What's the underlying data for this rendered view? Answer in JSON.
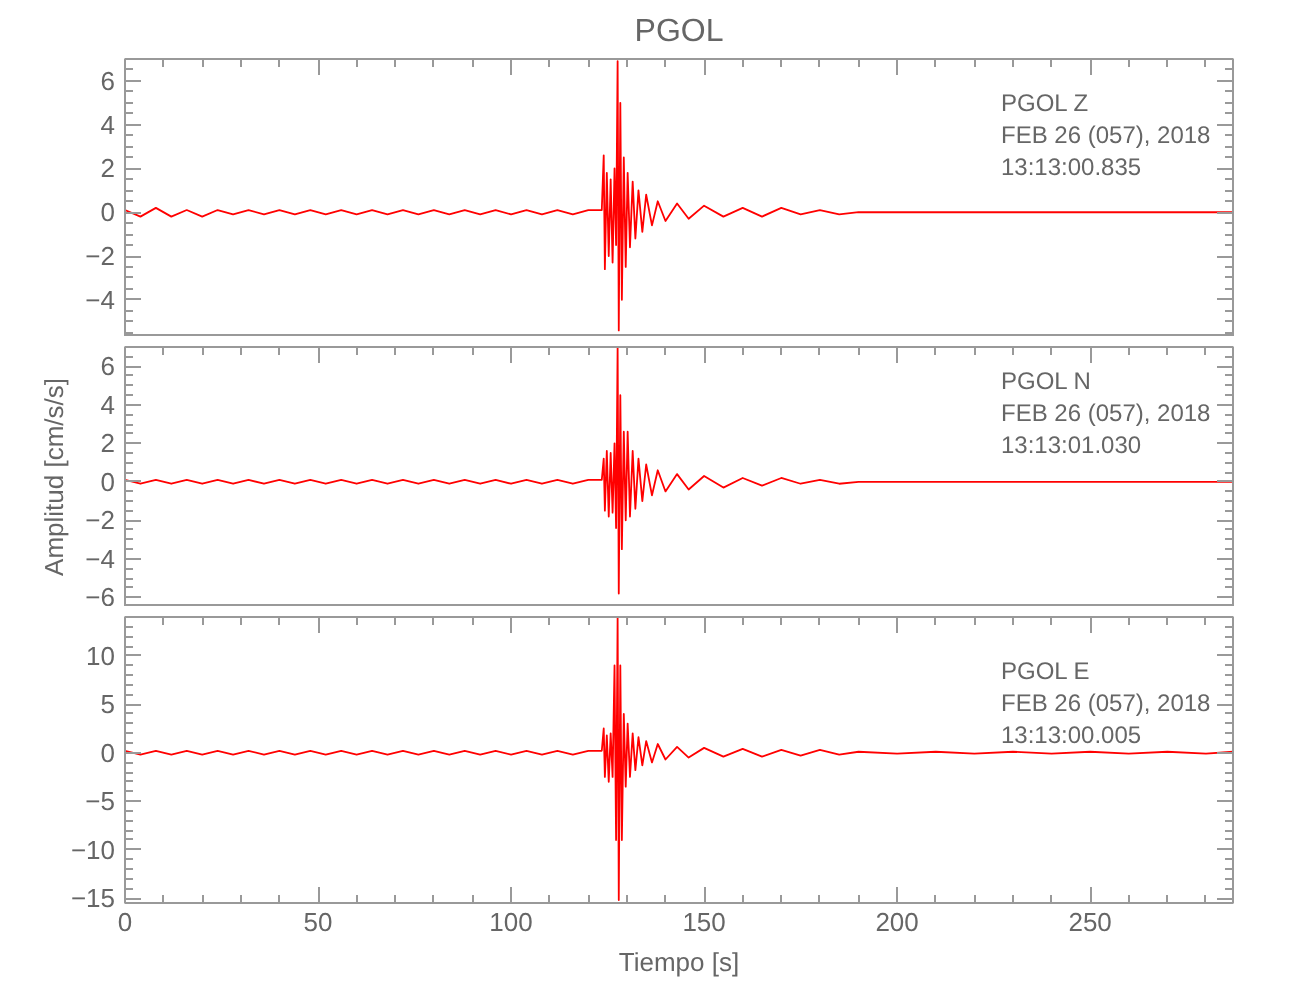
{
  "chart_data": [
    {
      "type": "line",
      "title": "PGOL",
      "annotations": [
        "PGOL   Z",
        "FEB 26 (057), 2018",
        "13:13:00.835"
      ],
      "tick_labels": "y",
      "x": [
        0,
        4,
        8,
        12,
        16,
        20,
        24,
        28,
        32,
        36,
        40,
        44,
        48,
        52,
        56,
        60,
        64,
        68,
        72,
        76,
        80,
        84,
        88,
        92,
        96,
        100,
        104,
        108,
        112,
        116,
        120,
        123.5,
        124,
        124.3,
        124.8,
        125.3,
        125.8,
        126.3,
        126.8,
        127.2,
        127.6,
        127.9,
        128.3,
        128.7,
        129.2,
        129.7,
        130.2,
        130.8,
        131.5,
        132.2,
        133,
        134,
        135,
        136.5,
        138,
        140,
        143,
        146,
        150,
        155,
        160,
        165,
        170,
        175,
        180,
        185,
        190,
        200,
        210,
        220,
        230,
        240,
        250,
        260,
        270,
        280,
        287
      ],
      "series": [
        {
          "color": "#ff0000",
          "values": [
            0.1,
            -0.2,
            0.2,
            -0.2,
            0.1,
            -0.2,
            0.1,
            -0.1,
            0.1,
            -0.1,
            0.1,
            -0.1,
            0.1,
            -0.1,
            0.1,
            -0.1,
            0.1,
            -0.1,
            0.1,
            -0.1,
            0.1,
            -0.1,
            0.1,
            -0.1,
            0.1,
            -0.1,
            0.1,
            -0.1,
            0.1,
            -0.1,
            0.1,
            0.1,
            2.6,
            -2.6,
            1.8,
            -2.0,
            1.5,
            -2.3,
            2.0,
            -1.5,
            6.9,
            -5.4,
            5.0,
            -4.0,
            2.5,
            -2.5,
            1.8,
            -1.6,
            1.4,
            -1.2,
            1.0,
            -0.9,
            0.8,
            -0.6,
            0.5,
            -0.4,
            0.4,
            -0.3,
            0.3,
            -0.2,
            0.2,
            -0.2,
            0.2,
            -0.1,
            0.1,
            -0.1,
            0,
            0,
            0,
            0,
            0,
            0,
            0,
            0,
            0,
            0,
            0
          ]
        }
      ],
      "xlim": [
        0,
        287
      ],
      "xticks": [
        0,
        50,
        100,
        150,
        200,
        250
      ],
      "ylim": [
        -5.7,
        7.0
      ],
      "yticks": [
        -4,
        -2,
        0,
        2,
        4,
        6
      ]
    },
    {
      "type": "line",
      "ylabel": "Amplitud [cm/s/s]",
      "annotations": [
        "PGOL   N",
        "FEB 26 (057), 2018",
        "13:13:01.030"
      ],
      "tick_labels": "y",
      "x": [
        0,
        4,
        8,
        12,
        16,
        20,
        24,
        28,
        32,
        36,
        40,
        44,
        48,
        52,
        56,
        60,
        64,
        68,
        72,
        76,
        80,
        84,
        88,
        92,
        96,
        100,
        104,
        108,
        112,
        116,
        120,
        123.5,
        124,
        124.3,
        124.8,
        125.3,
        125.8,
        126.3,
        126.8,
        127.2,
        127.6,
        127.9,
        128.3,
        128.7,
        129.2,
        129.7,
        130.2,
        130.8,
        131.5,
        132.2,
        133,
        134,
        135,
        136.5,
        138,
        140,
        143,
        146,
        150,
        155,
        160,
        165,
        170,
        175,
        180,
        185,
        190,
        200,
        210,
        220,
        230,
        240,
        250,
        260,
        270,
        280,
        287
      ],
      "series": [
        {
          "color": "#ff0000",
          "values": [
            0.1,
            -0.1,
            0.1,
            -0.1,
            0.1,
            -0.1,
            0.1,
            -0.1,
            0.1,
            -0.1,
            0.1,
            -0.1,
            0.1,
            -0.1,
            0.1,
            -0.1,
            0.1,
            -0.1,
            0.1,
            -0.1,
            0.1,
            -0.1,
            0.1,
            -0.1,
            0.1,
            -0.1,
            0.1,
            -0.1,
            0.1,
            -0.1,
            0.1,
            0.1,
            1.2,
            -1.5,
            1.6,
            -1.8,
            1.5,
            -1.6,
            2.0,
            -2.4,
            7.0,
            -5.8,
            4.5,
            -3.5,
            2.6,
            -2.0,
            2.6,
            -1.8,
            1.6,
            -1.4,
            1.2,
            -1.0,
            0.9,
            -0.7,
            0.6,
            -0.5,
            0.4,
            -0.4,
            0.3,
            -0.3,
            0.2,
            -0.2,
            0.2,
            -0.1,
            0.1,
            -0.1,
            0,
            0,
            0,
            0,
            0,
            0,
            0,
            0,
            0,
            0,
            0
          ]
        }
      ],
      "xlim": [
        0,
        287
      ],
      "xticks": [
        0,
        50,
        100,
        150,
        200,
        250
      ],
      "ylim": [
        -6.5,
        7.0
      ],
      "yticks": [
        -6,
        -4,
        -2,
        0,
        2,
        4,
        6
      ]
    },
    {
      "type": "line",
      "xlabel": "Tiempo [s]",
      "annotations": [
        "PGOL   E",
        "FEB 26 (057), 2018",
        "13:13:00.005"
      ],
      "x": [
        0,
        4,
        8,
        12,
        16,
        20,
        24,
        28,
        32,
        36,
        40,
        44,
        48,
        52,
        56,
        60,
        64,
        68,
        72,
        76,
        80,
        84,
        88,
        92,
        96,
        100,
        104,
        108,
        112,
        116,
        120,
        123.5,
        124,
        124.3,
        124.8,
        125.3,
        125.8,
        126.3,
        126.8,
        127.2,
        127.6,
        127.9,
        128.3,
        128.7,
        129.2,
        129.7,
        130.2,
        130.8,
        131.5,
        132.2,
        133,
        134,
        135,
        136.5,
        138,
        140,
        143,
        146,
        150,
        155,
        160,
        165,
        170,
        175,
        180,
        185,
        190,
        200,
        210,
        220,
        230,
        240,
        250,
        260,
        270,
        280,
        287
      ],
      "series": [
        {
          "color": "#ff0000",
          "values": [
            0.2,
            -0.2,
            0.2,
            -0.2,
            0.2,
            -0.2,
            0.2,
            -0.2,
            0.2,
            -0.2,
            0.2,
            -0.2,
            0.2,
            -0.2,
            0.2,
            -0.2,
            0.2,
            -0.2,
            0.2,
            -0.2,
            0.2,
            -0.2,
            0.2,
            -0.2,
            0.2,
            -0.2,
            0.2,
            -0.2,
            0.2,
            -0.2,
            0.2,
            0.2,
            2.5,
            -2.5,
            1.8,
            -3.0,
            2.0,
            -2.5,
            9.0,
            -9.0,
            14.0,
            -15.2,
            9.0,
            -9.0,
            4.0,
            -3.5,
            3.0,
            -2.5,
            2.0,
            -1.8,
            1.6,
            -1.3,
            1.2,
            -1.0,
            0.9,
            -0.7,
            0.6,
            -0.5,
            0.5,
            -0.4,
            0.4,
            -0.4,
            0.3,
            -0.3,
            0.3,
            -0.2,
            0.1,
            -0.1,
            0.1,
            -0.1,
            0.1,
            -0.1,
            0.1,
            -0.1,
            0.1,
            -0.1,
            0.1
          ]
        }
      ],
      "xlim": [
        0,
        287
      ],
      "xticks": [
        0,
        50,
        100,
        150,
        200,
        250
      ],
      "ylim": [
        -15.5,
        14.0
      ],
      "yticks": [
        -15,
        -10,
        -5,
        0,
        5,
        10
      ]
    }
  ]
}
